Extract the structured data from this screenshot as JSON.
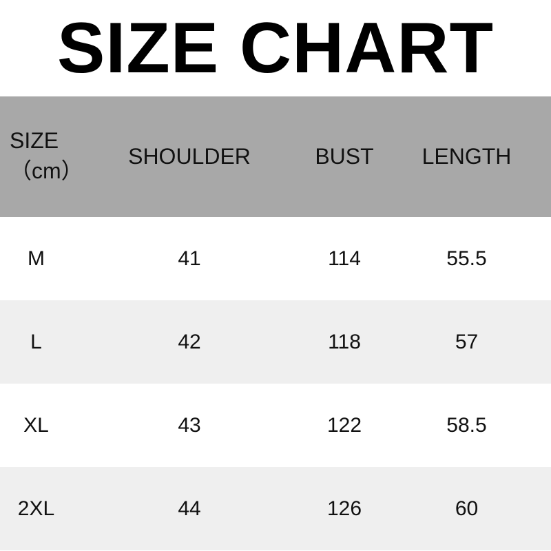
{
  "title": "SIZE CHART",
  "headers": [
    "SIZE",
    "（cm）",
    "SHOULDER",
    "BUST",
    "LENGTH"
  ],
  "rows": [
    [
      "M",
      "41",
      "114",
      "55.5"
    ],
    [
      "L",
      "42",
      "118",
      "57"
    ],
    [
      "XL",
      "43",
      "122",
      "58.5"
    ],
    [
      "2XL",
      "44",
      "126",
      "60"
    ]
  ]
}
